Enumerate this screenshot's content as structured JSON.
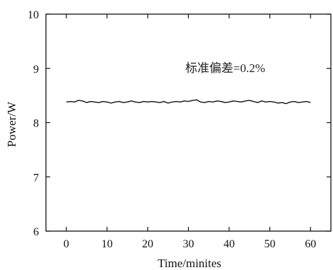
{
  "chart_data": {
    "type": "line",
    "xlabel": "Time/minites",
    "ylabel": "Power/W",
    "xlim": [
      -5,
      65
    ],
    "ylim": [
      6,
      10
    ],
    "xticks": [
      0,
      10,
      20,
      30,
      40,
      50,
      60
    ],
    "yticks": [
      6,
      7,
      8,
      9,
      10
    ],
    "grid": false,
    "annotation": "标准偏差=0.2%",
    "series": [
      {
        "color": "#111111",
        "x": [
          0,
          1,
          2,
          3,
          4,
          5,
          6,
          7,
          8,
          9,
          10,
          11,
          12,
          13,
          14,
          15,
          16,
          17,
          18,
          19,
          20,
          21,
          22,
          23,
          24,
          25,
          26,
          27,
          28,
          29,
          30,
          31,
          32,
          33,
          34,
          35,
          36,
          37,
          38,
          39,
          40,
          41,
          42,
          43,
          44,
          45,
          46,
          47,
          48,
          49,
          50,
          51,
          52,
          53,
          54,
          55,
          56,
          57,
          58,
          59,
          60
        ],
        "y": [
          8.38,
          8.39,
          8.38,
          8.41,
          8.4,
          8.37,
          8.39,
          8.38,
          8.37,
          8.39,
          8.38,
          8.36,
          8.38,
          8.39,
          8.37,
          8.38,
          8.4,
          8.38,
          8.37,
          8.39,
          8.38,
          8.39,
          8.38,
          8.37,
          8.39,
          8.36,
          8.38,
          8.39,
          8.38,
          8.4,
          8.39,
          8.41,
          8.42,
          8.38,
          8.37,
          8.39,
          8.38,
          8.4,
          8.39,
          8.37,
          8.38,
          8.4,
          8.39,
          8.38,
          8.4,
          8.41,
          8.39,
          8.37,
          8.4,
          8.38,
          8.39,
          8.38,
          8.36,
          8.37,
          8.35,
          8.38,
          8.39,
          8.37,
          8.38,
          8.39,
          8.37
        ]
      }
    ]
  }
}
